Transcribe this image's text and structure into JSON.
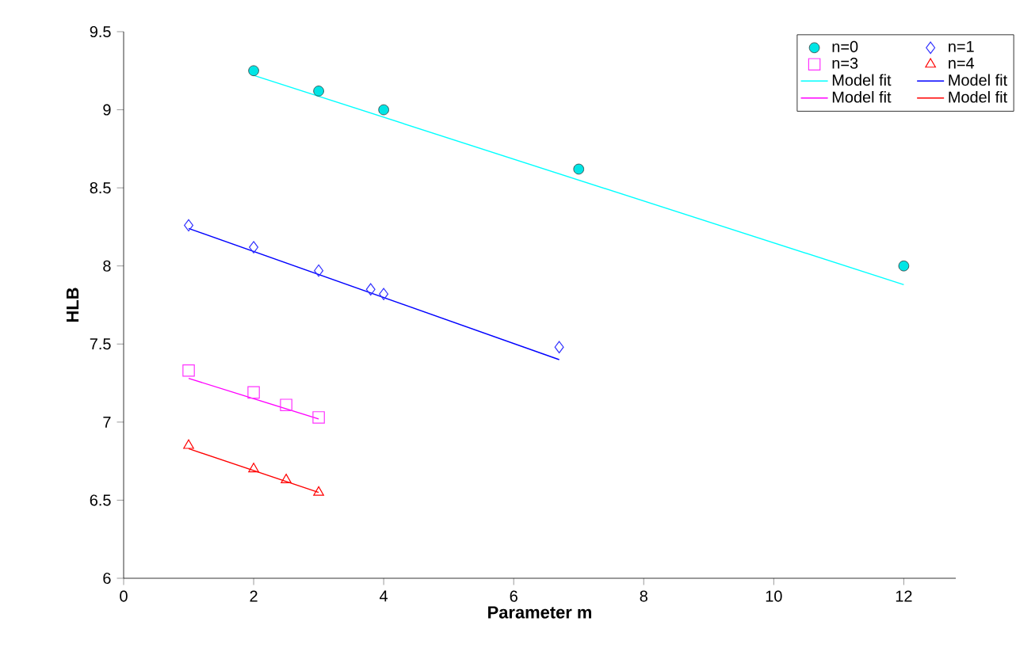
{
  "chart_data": {
    "type": "scatter",
    "xlabel": "Parameter m",
    "ylabel": "HLB",
    "xlim": [
      0,
      12.8
    ],
    "ylim": [
      6,
      9.5
    ],
    "xticks": [
      0,
      2,
      4,
      6,
      8,
      10,
      12
    ],
    "yticks": [
      6,
      6.5,
      7,
      7.5,
      8,
      8.5,
      9,
      9.5
    ],
    "grid": false,
    "legend": "top right",
    "series": [
      {
        "name": "n=0",
        "color": "#00e5e5",
        "marker": "circle",
        "x": [
          2,
          3,
          4,
          7,
          12
        ],
        "values": [
          9.25,
          9.12,
          9.0,
          8.62,
          8.0
        ]
      },
      {
        "name": "n=1",
        "color": "#3333ff",
        "marker": "diamond",
        "x": [
          1,
          2,
          3,
          3.8,
          4,
          6.7
        ],
        "values": [
          8.26,
          8.12,
          7.97,
          7.85,
          7.82,
          7.48
        ]
      },
      {
        "name": "n=3",
        "color": "#ff33ff",
        "marker": "square",
        "x": [
          1,
          2,
          2.5,
          3
        ],
        "values": [
          7.33,
          7.19,
          7.11,
          7.03
        ]
      },
      {
        "name": "n=4",
        "color": "#ff0000",
        "marker": "triangle",
        "x": [
          1,
          2,
          2.5,
          3
        ],
        "values": [
          6.85,
          6.7,
          6.63,
          6.55
        ]
      },
      {
        "name": "Model fit",
        "type": "line",
        "color": "#00ffff",
        "x": [
          2,
          12
        ],
        "values": [
          9.22,
          7.88
        ]
      },
      {
        "name": "Model fit",
        "type": "line",
        "color": "#0000ff",
        "x": [
          1,
          6.7
        ],
        "values": [
          8.24,
          7.4
        ]
      },
      {
        "name": "Model fit",
        "type": "line",
        "color": "#ff00ff",
        "x": [
          1,
          3
        ],
        "values": [
          7.28,
          7.02
        ]
      },
      {
        "name": "Model fit",
        "type": "line",
        "color": "#ff0000",
        "x": [
          1,
          3
        ],
        "values": [
          6.83,
          6.55
        ]
      }
    ]
  }
}
